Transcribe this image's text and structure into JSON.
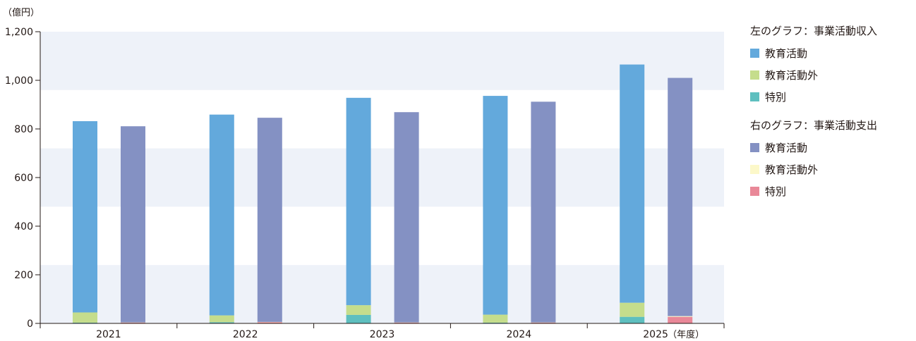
{
  "chart_data": {
    "type": "bar",
    "unit": "（億円）",
    "year_suffix": "（年度）",
    "categories": [
      "2021",
      "2022",
      "2023",
      "2024",
      "2025"
    ],
    "ylim": [
      0,
      1200
    ],
    "yticks": [
      "0",
      "200",
      "400",
      "600",
      "800",
      "1,000",
      "1,200"
    ],
    "ytick_values": [
      0,
      200,
      400,
      600,
      800,
      1000,
      1200
    ],
    "grid": "alternating horizontal bands",
    "legend_position": "right",
    "groups": [
      {
        "title": "左のグラフ：事業活動収入",
        "series": [
          {
            "name": "特別",
            "color": "#5ebfbf",
            "values": [
              3,
              5,
              35,
              3,
              27
            ]
          },
          {
            "name": "教育活動外",
            "color": "#c5dd8c",
            "values": [
              42,
              28,
              40,
              33,
              58
            ]
          },
          {
            "name": "教育活動",
            "color": "#63a9dc",
            "values": [
              787,
              826,
              853,
              900,
              980
            ]
          }
        ]
      },
      {
        "title": "右のグラフ：事業活動支出",
        "series": [
          {
            "name": "特別",
            "color": "#e98898",
            "values": [
              3,
              5,
              3,
              3,
              27
            ]
          },
          {
            "name": "教育活動外",
            "color": "#fcf8c9",
            "values": [
              1,
              1,
              1,
              1,
              3
            ]
          },
          {
            "name": "教育活動",
            "color": "#8491c3",
            "values": [
              807,
              840,
              865,
              908,
              980
            ]
          }
        ]
      }
    ]
  },
  "legend": [
    {
      "title": "左のグラフ：事業活動収入",
      "items": [
        {
          "label": "教育活動",
          "color": "#63a9dc"
        },
        {
          "label": "教育活動外",
          "color": "#c5dd8c"
        },
        {
          "label": "特別",
          "color": "#5ebfbf"
        }
      ]
    },
    {
      "title": "右のグラフ：事業活動支出",
      "items": [
        {
          "label": "教育活動",
          "color": "#8491c3"
        },
        {
          "label": "教育活動外",
          "color": "#fcf8c9"
        },
        {
          "label": "特別",
          "color": "#e98898"
        }
      ]
    }
  ],
  "colors": {
    "band": "#eef2f9",
    "axis": "#231815"
  }
}
